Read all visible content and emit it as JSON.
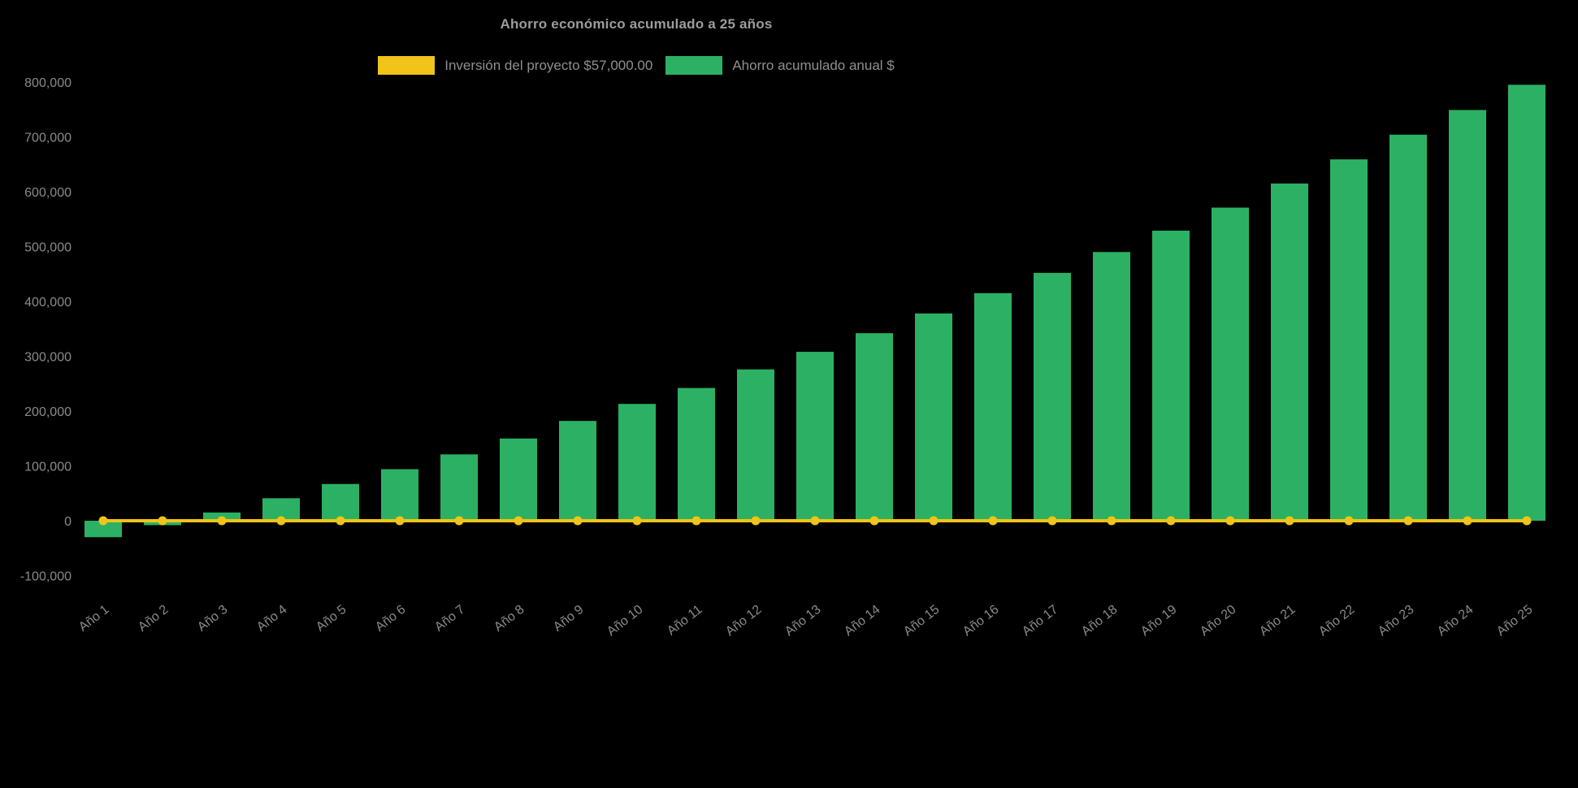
{
  "chart_data": {
    "type": "bar",
    "title": "Ahorro económico acumulado a 25 años",
    "background_color": "#000000",
    "text_color": "#8f8f8f",
    "legend_position": "top",
    "grid": false,
    "ylim": [
      -100000,
      800000
    ],
    "ytick_step": 100000,
    "categories": [
      "Año 1",
      "Año 2",
      "Año 3",
      "Año 4",
      "Año 5",
      "Año 6",
      "Año 7",
      "Año 8",
      "Año 9",
      "Año 10",
      "Año 11",
      "Año 12",
      "Año 13",
      "Año 14",
      "Año 15",
      "Año 16",
      "Año 17",
      "Año 18",
      "Año 19",
      "Año 20",
      "Año 21",
      "Año 22",
      "Año 23",
      "Año 24",
      "Año 25"
    ],
    "series": [
      {
        "name": "Inversión del proyecto $57,000.00",
        "type": "line",
        "color": "#f0c419",
        "value": 0
      },
      {
        "name": "Ahorro acumulado anual $",
        "type": "bar",
        "color": "#2cb164",
        "values": [
          -30000,
          -8000,
          15000,
          41000,
          67000,
          94000,
          121000,
          150000,
          182000,
          213000,
          242000,
          276000,
          308000,
          342000,
          378000,
          415000,
          452000,
          490000,
          529000,
          571000,
          615000,
          659000,
          704000,
          749000,
          795000
        ]
      }
    ]
  }
}
